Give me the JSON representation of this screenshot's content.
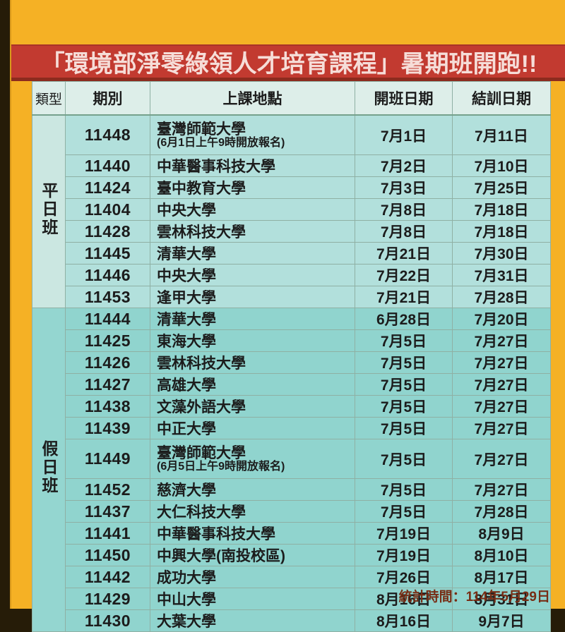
{
  "page": {
    "banner_title": "「環境部淨零綠領人才培育課程」暑期班開跑!!",
    "footer_note": "統計時間：114年5月29日"
  },
  "colors": {
    "background_dark": "#261c08",
    "background_orange": "#f5b125",
    "banner_red": "#c23a30",
    "banner_text": "#f6ddd8",
    "banner_shadow": "#8c2b1e",
    "header_cell_bg": "#ddeee9",
    "weekday_row_bg": "#b2e0dc",
    "weekday_group_bg": "#cbe7e1",
    "weekend_row_bg": "#90d4ce",
    "weekend_group_bg": "#94d6d0",
    "grid_line": "#8fb0a4",
    "footer_text": "#772d15"
  },
  "table": {
    "headers": [
      "類型",
      "期別",
      "上課地點",
      "開班日期",
      "結訓日期"
    ],
    "groups": [
      {
        "label": "平日班",
        "rows": [
          {
            "id": "11448",
            "location": "臺灣師範大學",
            "note": "(6月1日上午9時開放報名)",
            "start": "7月1日",
            "end": "7月11日"
          },
          {
            "id": "11440",
            "location": "中華醫事科技大學",
            "start": "7月2日",
            "end": "7月10日"
          },
          {
            "id": "11424",
            "location": "臺中教育大學",
            "start": "7月3日",
            "end": "7月25日"
          },
          {
            "id": "11404",
            "location": "中央大學",
            "start": "7月8日",
            "end": "7月18日"
          },
          {
            "id": "11428",
            "location": "雲林科技大學",
            "start": "7月8日",
            "end": "7月18日"
          },
          {
            "id": "11445",
            "location": "清華大學",
            "start": "7月21日",
            "end": "7月30日"
          },
          {
            "id": "11446",
            "location": "中央大學",
            "start": "7月22日",
            "end": "7月31日"
          },
          {
            "id": "11453",
            "location": "逢甲大學",
            "start": "7月21日",
            "end": "7月28日"
          }
        ]
      },
      {
        "label": "假日班",
        "rows": [
          {
            "id": "11444",
            "location": "清華大學",
            "start": "6月28日",
            "end": "7月20日"
          },
          {
            "id": "11425",
            "location": "東海大學",
            "start": "7月5日",
            "end": "7月27日"
          },
          {
            "id": "11426",
            "location": "雲林科技大學",
            "start": "7月5日",
            "end": "7月27日"
          },
          {
            "id": "11427",
            "location": "高雄大學",
            "start": "7月5日",
            "end": "7月27日"
          },
          {
            "id": "11438",
            "location": "文藻外語大學",
            "start": "7月5日",
            "end": "7月27日"
          },
          {
            "id": "11439",
            "location": "中正大學",
            "start": "7月5日",
            "end": "7月27日"
          },
          {
            "id": "11449",
            "location": "臺灣師範大學",
            "note": "(6月5日上午9時開放報名)",
            "start": "7月5日",
            "end": "7月27日"
          },
          {
            "id": "11452",
            "location": "慈濟大學",
            "start": "7月5日",
            "end": "7月27日"
          },
          {
            "id": "11437",
            "location": "大仁科技大學",
            "start": "7月5日",
            "end": "7月28日"
          },
          {
            "id": "11441",
            "location": "中華醫事科技大學",
            "start": "7月19日",
            "end": "8月9日"
          },
          {
            "id": "11450",
            "location": "中興大學(南投校區)",
            "start": "7月19日",
            "end": "8月10日"
          },
          {
            "id": "11442",
            "location": "成功大學",
            "start": "7月26日",
            "end": "8月17日"
          },
          {
            "id": "11429",
            "location": "中山大學",
            "start": "8月16日",
            "end": "8月31日"
          },
          {
            "id": "11430",
            "location": "大葉大學",
            "start": "8月16日",
            "end": "9月7日"
          }
        ]
      }
    ]
  }
}
